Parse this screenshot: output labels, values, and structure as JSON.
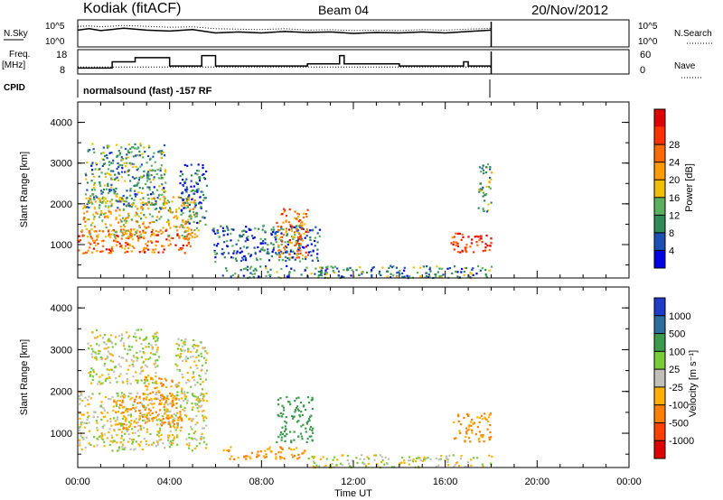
{
  "header": {
    "station": "Kodiak (fitACF)",
    "beam": "Beam 04",
    "date": "20/Nov/2012"
  },
  "info_panels": {
    "nsky_label": "N.Sky",
    "nsky_ticks": [
      "10^5",
      "10^0"
    ],
    "nsearch_label": "N.Search",
    "nsearch_ticks": [
      "10^5",
      "10^0"
    ],
    "freq_label": "Freq.",
    "freq_unit": "[MHz]",
    "freq_ticks": [
      "18",
      "8"
    ],
    "nave_label": "Nave",
    "nave_ticks": [
      "60",
      "0"
    ],
    "cpid_label": "CPID",
    "cpid_text": "normalsound (fast) -157 RF"
  },
  "axes": {
    "xlabel": "Time UT",
    "ylabel": "Slant Range [km]",
    "x_ticks": [
      "00:00",
      "04:00",
      "08:00",
      "12:00",
      "16:00",
      "20:00",
      "00:00"
    ],
    "y_ticks": [
      "1000",
      "2000",
      "3000",
      "4000"
    ]
  },
  "power_scale": {
    "label": "Power [dB]",
    "ticks": [
      "4",
      "8",
      "12",
      "16",
      "20",
      "24",
      "28"
    ],
    "colors": [
      "#0000e6",
      "#1e50b4",
      "#2e8b57",
      "#5bb060",
      "#f0c000",
      "#ff9c00",
      "#ff6a00",
      "#ff3000",
      "#e00000"
    ]
  },
  "velocity_scale": {
    "label": "Velocity [m s⁻¹]",
    "ticks": [
      "1000",
      "500",
      "100",
      "25",
      "-25",
      "-100",
      "-500",
      "-1000"
    ],
    "colors": [
      "#1e3cc8",
      "#2e6e9e",
      "#3c9a4c",
      "#78cc3c",
      "#c0c0b8",
      "#ffb000",
      "#ff8000",
      "#ff4000",
      "#e00000"
    ]
  },
  "chart_data": [
    {
      "type": "line",
      "name": "N.Sky / N.Search",
      "x_hours": [
        0,
        0.5,
        1,
        2,
        3,
        4,
        5,
        6,
        7,
        8,
        9,
        10,
        11,
        12,
        13,
        14,
        15,
        16,
        17,
        18
      ],
      "series": [
        {
          "values": [
            3.2,
            3.5,
            3.1,
            3.6,
            3.2,
            3.0,
            3.3,
            2.6,
            2.8,
            2.6,
            2.9,
            2.7,
            2.8,
            2.5,
            2.7,
            2.6,
            2.8,
            2.6,
            2.9,
            3.2
          ]
        },
        {
          "values": [
            4.0,
            4.1,
            3.9,
            4.2,
            4.0,
            3.8,
            3.9,
            3.5,
            3.4,
            3.3,
            3.5,
            3.2,
            3.3,
            3.1,
            3.2,
            3.1,
            3.3,
            3.2,
            3.4,
            3.6
          ]
        }
      ],
      "yscale": "log",
      "ylim": [
        0,
        5
      ]
    },
    {
      "type": "line",
      "name": "Freq. / Nave",
      "frequency_mhz_steps": [
        [
          0,
          10
        ],
        [
          1.5,
          13
        ],
        [
          2.5,
          15
        ],
        [
          4,
          11
        ],
        [
          5.4,
          16
        ],
        [
          6,
          11
        ],
        [
          10,
          12
        ],
        [
          11.4,
          16
        ],
        [
          11.6,
          12
        ],
        [
          14,
          11
        ],
        [
          16.8,
          13
        ],
        [
          17,
          11
        ],
        [
          18,
          11
        ]
      ],
      "nave_level": 15,
      "ylim_freq": [
        8,
        18
      ],
      "ylim_nave": [
        0,
        60
      ]
    },
    {
      "type": "heatmap",
      "name": "Power",
      "x_range_hours": [
        0,
        24
      ],
      "y_range_km": [
        180,
        4500
      ],
      "data_end_hour": 18,
      "value_range_db": [
        0,
        32
      ],
      "regions": [
        {
          "t": [
            0,
            5.0
          ],
          "r": [
            800,
            1400
          ],
          "db": 24
        },
        {
          "t": [
            0.2,
            5.3
          ],
          "r": [
            1200,
            2200
          ],
          "db": 17
        },
        {
          "t": [
            0.3,
            3.8
          ],
          "r": [
            1900,
            3500
          ],
          "db": 10
        },
        {
          "t": [
            4.4,
            5.6
          ],
          "r": [
            1500,
            3000
          ],
          "db": 7
        },
        {
          "t": [
            5.8,
            10.5
          ],
          "r": [
            600,
            1500
          ],
          "db": 6
        },
        {
          "t": [
            8.6,
            10.0
          ],
          "r": [
            700,
            1900
          ],
          "db": 22
        },
        {
          "t": [
            6.2,
            18
          ],
          "r": [
            200,
            500
          ],
          "db": 9
        },
        {
          "t": [
            16.2,
            18
          ],
          "r": [
            800,
            1300
          ],
          "db": 28
        },
        {
          "t": [
            17.4,
            18
          ],
          "r": [
            1800,
            3000
          ],
          "db": 12
        }
      ]
    },
    {
      "type": "heatmap",
      "name": "Velocity",
      "x_range_hours": [
        0,
        24
      ],
      "y_range_km": [
        180,
        4500
      ],
      "data_end_hour": 18,
      "value_range_ms": [
        -1000,
        1000
      ],
      "regions": [
        {
          "t": [
            0,
            5.6
          ],
          "r": [
            600,
            2000
          ],
          "v": 0
        },
        {
          "t": [
            1.5,
            4.5
          ],
          "r": [
            1100,
            1900
          ],
          "v": -110
        },
        {
          "t": [
            2.8,
            4.4
          ],
          "r": [
            1700,
            2400
          ],
          "v": -120
        },
        {
          "t": [
            0.4,
            3.5
          ],
          "r": [
            2200,
            3500
          ],
          "v": 10
        },
        {
          "t": [
            4.2,
            5.6
          ],
          "r": [
            1800,
            3300
          ],
          "v": 0
        },
        {
          "t": [
            8.6,
            10.2
          ],
          "r": [
            800,
            1900
          ],
          "v": 200
        },
        {
          "t": [
            6.3,
            10.0
          ],
          "r": [
            400,
            700
          ],
          "v": -110
        },
        {
          "t": [
            10,
            18
          ],
          "r": [
            200,
            500
          ],
          "v": 0
        },
        {
          "t": [
            16.3,
            18
          ],
          "r": [
            800,
            1500
          ],
          "v": -130
        }
      ]
    }
  ]
}
